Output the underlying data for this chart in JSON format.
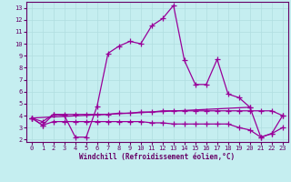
{
  "xlabel": "Windchill (Refroidissement éolien,°C)",
  "background_color": "#c5eef0",
  "grid_color": "#b0dde0",
  "line_color": "#990099",
  "spine_color": "#660066",
  "x_ticks": [
    0,
    1,
    2,
    3,
    4,
    5,
    6,
    7,
    8,
    9,
    10,
    11,
    12,
    13,
    14,
    15,
    16,
    17,
    18,
    19,
    20,
    21,
    22,
    23
  ],
  "y_ticks": [
    2,
    3,
    4,
    5,
    6,
    7,
    8,
    9,
    10,
    11,
    12,
    13
  ],
  "ylim": [
    1.8,
    13.5
  ],
  "xlim": [
    -0.5,
    23.5
  ],
  "series": [
    [
      3.8,
      3.2,
      4.1,
      4.0,
      2.2,
      2.2,
      4.8,
      9.2,
      9.8,
      10.2,
      10.0,
      11.5,
      12.1,
      13.2,
      8.6,
      6.6,
      6.6,
      8.7,
      5.8,
      5.5,
      4.7,
      null,
      null,
      null
    ],
    [
      3.8,
      null,
      null,
      null,
      null,
      null,
      null,
      null,
      null,
      null,
      null,
      null,
      null,
      null,
      null,
      null,
      null,
      null,
      null,
      null,
      4.7,
      2.2,
      2.5,
      4.0
    ],
    [
      3.8,
      3.5,
      4.1,
      4.1,
      4.1,
      4.1,
      4.1,
      4.1,
      4.2,
      4.2,
      4.3,
      4.3,
      4.4,
      4.4,
      4.4,
      4.4,
      4.4,
      4.4,
      4.4,
      4.4,
      4.4,
      4.4,
      4.4,
      4.0
    ],
    [
      3.8,
      3.2,
      3.5,
      3.5,
      3.5,
      3.5,
      3.5,
      3.5,
      3.5,
      3.5,
      3.5,
      3.4,
      3.4,
      3.3,
      3.3,
      3.3,
      3.3,
      3.3,
      3.3,
      3.0,
      2.8,
      2.2,
      2.5,
      3.0
    ]
  ]
}
